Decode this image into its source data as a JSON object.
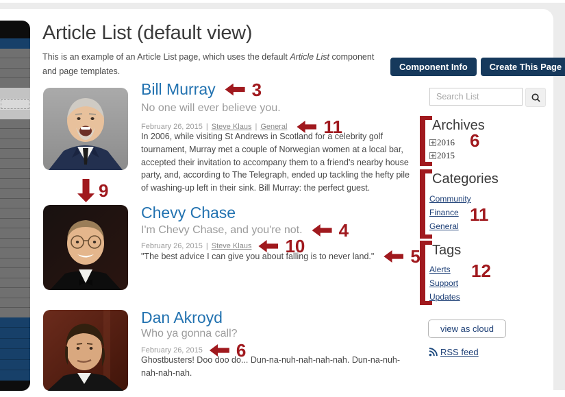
{
  "colors": {
    "red": "#a0191e",
    "navy": "#16395c",
    "title-blue": "#2272b0",
    "link": "#1d3f76"
  },
  "page": {
    "title": "Article List (default view)",
    "intro_prefix": "This is an example of an Article List page, which uses the default ",
    "intro_italic": "Article List",
    "intro_after": " component",
    "intro_line2": "and page templates."
  },
  "header_buttons": {
    "component_info": "Component Info",
    "create_this_page": "Create This Page"
  },
  "search": {
    "placeholder": "Search List"
  },
  "meta": {
    "separator": "|"
  },
  "articles": [
    {
      "title": "Bill Murray",
      "subtitle": "No one will ever believe you.",
      "date": "February 26, 2015",
      "author": "Steve Klaus",
      "category": "General",
      "body": "In 2006, while visiting St Andrews in Scotland for a celebrity golf tournament, Murray met a couple of Norwegian women at a local bar, accepted their invitation to accompany them to a friend's nearby house party, and, according to The Telegraph, ended up tackling the hefty pile of washing-up left in their sink. Bill Murray: the perfect guest."
    },
    {
      "title": "Chevy Chase",
      "subtitle": "I'm Chevy Chase, and you're not.",
      "date": "February 26, 2015",
      "author": "Steve Klaus",
      "body": "\"The best advice I can give you about falling is to never land.\""
    },
    {
      "title": "Dan Akroyd",
      "subtitle": "Who ya gonna call?",
      "date": "February 26, 2015",
      "body": "Ghostbusters! Doo doo do... Dun-na-nuh-nah-nah-nah. Dun-na-nuh-nah-nah-nah."
    }
  ],
  "sidebar": {
    "archives": {
      "title": "Archives",
      "items": [
        "2016",
        "2015"
      ]
    },
    "categories": {
      "title": "Categories",
      "links": [
        "Community",
        "Finance",
        "General"
      ]
    },
    "tags": {
      "title": "Tags",
      "links": [
        "Alerts",
        "Support",
        "Updates"
      ]
    },
    "view_as_cloud": "view as cloud",
    "rss": "RSS feed"
  },
  "annotations": {
    "title1": "3",
    "meta1": "11",
    "between_photos": "9",
    "subtitle2": "4",
    "meta2": "10",
    "body2": "5",
    "meta3": "6",
    "archives": "6",
    "categories": "11",
    "tags": "12"
  },
  "nav_strip": {
    "segments": [
      {
        "color": "#0d0d0d",
        "h": 27
      },
      {
        "color": "#174069",
        "h": 15
      },
      {
        "color": "#707070",
        "h": 14,
        "n": 4
      },
      {
        "color": "#c3c3c3",
        "h": 17
      },
      {
        "color": "#d9d9d9",
        "h": 17,
        "dashed": true
      },
      {
        "color": "#c3c3c3",
        "h": 14
      },
      {
        "color": "#707070",
        "h": 14,
        "n": 20
      },
      {
        "color": "#174069",
        "h": 15,
        "n": 6
      },
      {
        "color": "#0d0d0d",
        "h": 16
      }
    ]
  }
}
